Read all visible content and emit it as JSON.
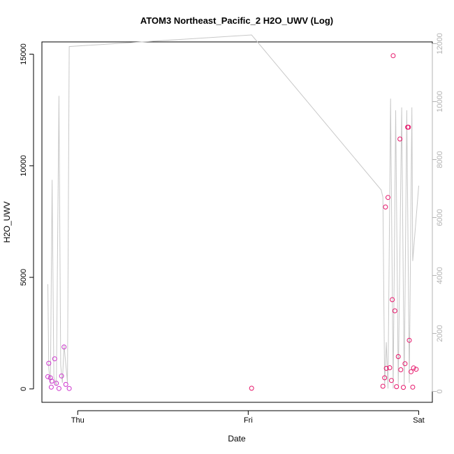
{
  "chart_data": {
    "type": "scatter",
    "title": "ATOM3 Northeast_Pacific_2 H2O_UWV (Log)",
    "xlabel": "Date",
    "ylabel": "H2O_UWV",
    "x_ticks": [
      "Thu",
      "Fri",
      "Sat"
    ],
    "y_ticks": [
      "0",
      "5000",
      "10000",
      "15000"
    ],
    "y_right_ticks": [
      "0",
      "2000",
      "4000",
      "6000",
      "8000",
      "10000",
      "12000"
    ],
    "ylim": [
      -600,
      15550
    ],
    "y_right_lim": [
      -375,
      12060
    ],
    "xlim": [
      -0.21,
      2.08
    ],
    "colors": {
      "points_a": "#cc33cc",
      "points_b": "#e6166a",
      "line": "#c8c8c8",
      "axis": "#000000",
      "right_axis": "#b3b3b3"
    },
    "series": [
      {
        "values": [
          {
            "x": -0.17,
            "y": 1150
          },
          {
            "x": -0.175,
            "y": 550
          },
          {
            "x": -0.16,
            "y": 500
          },
          {
            "x": -0.152,
            "y": 350
          },
          {
            "x": -0.155,
            "y": 80
          },
          {
            "x": -0.135,
            "y": 1350
          },
          {
            "x": -0.125,
            "y": 250
          },
          {
            "x": -0.11,
            "y": 20
          },
          {
            "x": -0.095,
            "y": 580
          },
          {
            "x": -0.08,
            "y": 1880
          },
          {
            "x": -0.07,
            "y": 200
          },
          {
            "x": -0.05,
            "y": 20
          },
          {
            "x": 1.02,
            "y": 30
          },
          {
            "x": 1.79,
            "y": 120
          },
          {
            "x": 1.8,
            "y": 500
          },
          {
            "x": 1.805,
            "y": 8150
          },
          {
            "x": 1.81,
            "y": 920
          },
          {
            "x": 1.82,
            "y": 8580
          },
          {
            "x": 1.83,
            "y": 950
          },
          {
            "x": 1.84,
            "y": 380
          },
          {
            "x": 1.845,
            "y": 4000
          },
          {
            "x": 1.85,
            "y": 14930
          },
          {
            "x": 1.86,
            "y": 3500
          },
          {
            "x": 1.87,
            "y": 100
          },
          {
            "x": 1.88,
            "y": 1450
          },
          {
            "x": 1.89,
            "y": 11200
          },
          {
            "x": 1.895,
            "y": 860
          },
          {
            "x": 1.91,
            "y": 70
          },
          {
            "x": 1.92,
            "y": 1130
          },
          {
            "x": 1.935,
            "y": 11730
          },
          {
            "x": 1.94,
            "y": 11730
          },
          {
            "x": 1.945,
            "y": 2180
          },
          {
            "x": 1.955,
            "y": 770
          },
          {
            "x": 1.965,
            "y": 80
          },
          {
            "x": 1.97,
            "y": 940
          },
          {
            "x": 1.985,
            "y": 880
          }
        ]
      },
      {
        "axis": "right",
        "values": [
          {
            "x": -0.175,
            "y": 3700
          },
          {
            "x": -0.17,
            "y": 800
          },
          {
            "x": -0.16,
            "y": 250
          },
          {
            "x": -0.15,
            "y": 7300
          },
          {
            "x": -0.14,
            "y": 500
          },
          {
            "x": -0.125,
            "y": 200
          },
          {
            "x": -0.11,
            "y": 10200
          },
          {
            "x": -0.1,
            "y": 900
          },
          {
            "x": -0.09,
            "y": 300
          },
          {
            "x": -0.08,
            "y": 1600
          },
          {
            "x": -0.06,
            "y": 300
          },
          {
            "x": -0.05,
            "y": 11900
          },
          {
            "x": 1.02,
            "y": 12300
          },
          {
            "x": 1.78,
            "y": 6950
          },
          {
            "x": 1.79,
            "y": 6700
          },
          {
            "x": 1.8,
            "y": 200
          },
          {
            "x": 1.81,
            "y": 1700
          },
          {
            "x": 1.82,
            "y": 100
          },
          {
            "x": 1.835,
            "y": 10100
          },
          {
            "x": 1.85,
            "y": 100
          },
          {
            "x": 1.865,
            "y": 9700
          },
          {
            "x": 1.88,
            "y": 200
          },
          {
            "x": 1.9,
            "y": 9800
          },
          {
            "x": 1.915,
            "y": 200
          },
          {
            "x": 1.93,
            "y": 9700
          },
          {
            "x": 1.945,
            "y": 300
          },
          {
            "x": 1.96,
            "y": 9800
          },
          {
            "x": 1.965,
            "y": 4500
          },
          {
            "x": 2.0,
            "y": 7100
          }
        ]
      }
    ]
  }
}
